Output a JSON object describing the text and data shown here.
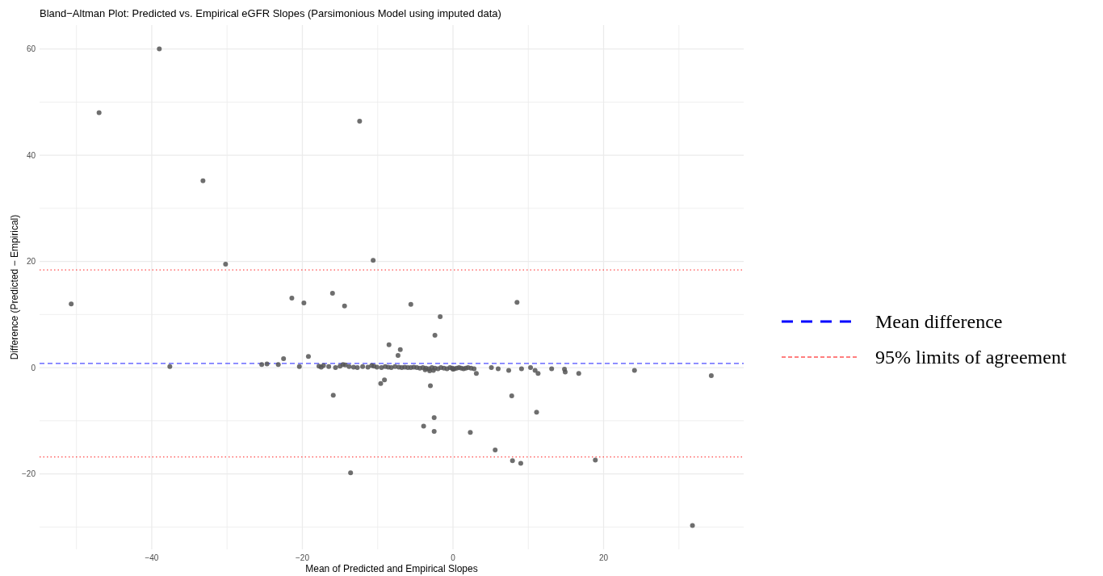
{
  "chart_data": {
    "type": "scatter",
    "title": "Bland−Altman Plot: Predicted vs. Empirical eGFR Slopes (Parsimonious Model using imputed data)",
    "xlabel": "Mean of Predicted and Empirical Slopes",
    "ylabel": "Difference (Predicted − Empirical)",
    "xlim": [
      -54.9,
      38.6
    ],
    "ylim": [
      -34.2,
      64.5
    ],
    "xticks": [
      {
        "value": -50,
        "label": null
      },
      -40,
      {
        "value": -30,
        "label": null
      },
      -20,
      {
        "value": -10,
        "label": null
      },
      0,
      {
        "value": 10,
        "label": null
      },
      20,
      {
        "value": 30,
        "label": null
      }
    ],
    "yticks": [
      {
        "value": -30,
        "label": null
      },
      -20,
      {
        "value": -10,
        "label": null
      },
      0,
      {
        "value": 10,
        "label": null
      },
      20,
      {
        "value": 30,
        "label": null
      },
      40,
      {
        "value": 50,
        "label": null
      },
      60
    ],
    "grid": true,
    "legend": "right",
    "marker": "circle",
    "ref_lines": [
      {
        "axis": "y",
        "value": 0.8,
        "label": "Mean difference",
        "color": "#0000ff",
        "line_style": "dashed"
      },
      {
        "axis": "y",
        "value": 18.4,
        "label": "95% limits of agreement",
        "color": "#ff0000",
        "line_style": "dotted"
      },
      {
        "axis": "y",
        "value": -16.8,
        "label": null,
        "color": "#ff0000",
        "line_style": "dotted"
      }
    ],
    "series": [
      {
        "color": "#555555",
        "x": [
          -39.0,
          -47.0,
          -33.2,
          -30.2,
          -12.4,
          -10.6,
          -50.7,
          -37.6,
          -16.0,
          -21.4,
          -19.8,
          -14.4,
          -5.6,
          -1.7,
          8.5,
          -2.4,
          -8.5,
          -7.0,
          -7.3,
          -19.2,
          -22.5,
          -15.9,
          -9.6,
          -9.1,
          -3.0,
          -3.9,
          -2.5,
          -2.5,
          2.3,
          5.6,
          7.8,
          11.1,
          7.9,
          9.0,
          18.9,
          -13.6,
          31.8,
          34.3,
          24.1,
          16.7,
          14.9,
          14.8,
          13.1,
          11.3,
          10.9,
          10.3,
          9.1,
          7.4,
          6.0,
          5.1,
          3.1,
          -25.4,
          -24.7,
          -23.2,
          -20.4,
          -17.8,
          -17.5,
          -17.2,
          -16.5,
          -15.6,
          -15.0,
          -14.6,
          -14.3,
          -13.8,
          -13.2,
          -12.7,
          -12.0,
          -11.3,
          -10.8,
          -10.5,
          -10.1,
          -9.5,
          -9.0,
          -8.6,
          -8.2,
          -7.7,
          -7.2,
          -6.8,
          -6.4,
          -6.0,
          -5.6,
          -5.2,
          -4.8,
          -4.4,
          -4.0,
          -3.6,
          -3.2,
          -2.8,
          -2.4,
          -2.0,
          -1.6,
          -1.2,
          -0.8,
          -0.4,
          -0.1,
          0.2,
          0.5,
          0.8,
          1.1,
          1.4,
          1.7,
          2.0,
          2.4,
          2.8,
          -3.7,
          -3.1,
          -2.6,
          0.0
        ],
        "values": [
          60.0,
          48.0,
          35.2,
          19.5,
          46.4,
          20.2,
          12.0,
          0.2,
          14.0,
          13.1,
          12.2,
          11.6,
          11.9,
          9.6,
          12.3,
          6.1,
          4.3,
          3.4,
          2.3,
          2.1,
          1.7,
          -5.2,
          -3.0,
          -2.3,
          -3.4,
          -11.0,
          -9.4,
          -12.0,
          -12.2,
          -15.5,
          -5.3,
          -8.4,
          -17.5,
          -18.0,
          -17.4,
          -19.8,
          -29.7,
          -1.5,
          -0.5,
          -1.1,
          -0.8,
          -0.3,
          -0.2,
          -1.1,
          -0.5,
          0.0,
          -0.2,
          -0.5,
          -0.2,
          0.0,
          -1.1,
          0.6,
          0.7,
          0.6,
          0.2,
          0.3,
          0.1,
          0.4,
          0.2,
          0.0,
          0.3,
          0.6,
          0.5,
          0.2,
          0.1,
          0.0,
          0.2,
          0.1,
          0.4,
          0.3,
          0.1,
          0.0,
          0.2,
          0.1,
          0.0,
          0.2,
          0.1,
          0.0,
          0.1,
          0.0,
          0.0,
          0.1,
          0.0,
          -0.1,
          0.0,
          -0.1,
          -0.2,
          0.0,
          -0.1,
          -0.2,
          0.0,
          -0.1,
          -0.2,
          0.0,
          -0.1,
          -0.2,
          -0.1,
          0.0,
          -0.1,
          -0.2,
          -0.1,
          0.0,
          -0.1,
          -0.2,
          -0.4,
          -0.6,
          -0.5,
          -0.3
        ]
      }
    ]
  }
}
